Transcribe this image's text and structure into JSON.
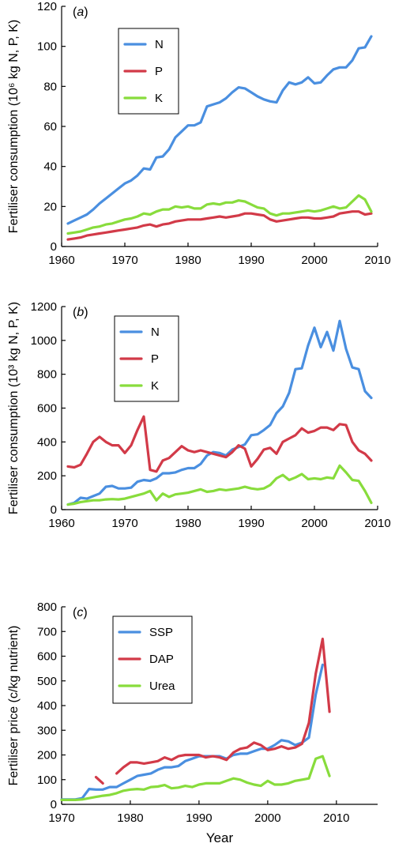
{
  "chart_data": [
    {
      "type": "line",
      "panel": "(a)",
      "panel_letter": "a",
      "ylabel": "Fertiliser consumption (10⁶ kg N, P, K)",
      "xlabel": "",
      "xlim": [
        1960,
        2010
      ],
      "ylim": [
        0,
        120
      ],
      "xticks": [
        1960,
        1970,
        1980,
        1990,
        2000,
        2010
      ],
      "yticks": [
        0,
        20,
        40,
        60,
        80,
        100,
        120
      ],
      "legend_position": "top-left",
      "x": [
        1961,
        1962,
        1963,
        1964,
        1965,
        1966,
        1967,
        1968,
        1969,
        1970,
        1971,
        1972,
        1973,
        1974,
        1975,
        1976,
        1977,
        1978,
        1979,
        1980,
        1981,
        1982,
        1983,
        1984,
        1985,
        1986,
        1987,
        1988,
        1989,
        1990,
        1991,
        1992,
        1993,
        1994,
        1995,
        1996,
        1997,
        1998,
        1999,
        2000,
        2001,
        2002,
        2003,
        2004,
        2005,
        2006,
        2007,
        2008,
        2009
      ],
      "series": [
        {
          "name": "N",
          "color": "#4a8fe0",
          "values": [
            11.5,
            13,
            14.5,
            16,
            18.5,
            21.5,
            24,
            26.5,
            29,
            31.5,
            33,
            35.5,
            39,
            38.5,
            44.5,
            45,
            48.5,
            54.5,
            57.5,
            60.5,
            60.5,
            62,
            70,
            71,
            72,
            74,
            77,
            79.5,
            79,
            77,
            75,
            73.5,
            72.5,
            72,
            78,
            82,
            81,
            82,
            84.5,
            81.5,
            82,
            85.5,
            88.5,
            89.5,
            89.5,
            93,
            99,
            99.5,
            105
          ]
        },
        {
          "name": "P",
          "color": "#d23a48",
          "values": [
            3.5,
            4,
            4.5,
            5.5,
            6,
            6.5,
            7,
            7.5,
            8,
            8.5,
            9,
            9.5,
            10.5,
            11,
            10,
            11,
            11.5,
            12.5,
            13,
            13.5,
            13.5,
            13.5,
            14,
            14.5,
            15,
            14.5,
            15,
            15.5,
            16.5,
            16.5,
            16,
            15.5,
            13.5,
            12.5,
            13,
            13.5,
            14,
            14.5,
            14.5,
            14,
            14,
            14.5,
            15,
            16.5,
            17,
            17.5,
            17.5,
            16,
            16.5
          ]
        },
        {
          "name": "K",
          "color": "#88dc3c",
          "values": [
            6.5,
            7,
            7.5,
            8.5,
            9.5,
            10,
            11,
            11.5,
            12.5,
            13.5,
            14,
            15,
            16.5,
            16,
            17.5,
            18.5,
            18.5,
            20,
            19.5,
            20,
            19,
            19,
            21,
            21.5,
            21,
            22,
            22,
            23,
            22.5,
            21,
            19.5,
            19,
            16.5,
            15.5,
            16.5,
            16.5,
            17,
            17.5,
            18,
            17.5,
            18,
            19,
            20,
            19,
            19.5,
            22.5,
            25.5,
            23.5,
            17.5
          ]
        }
      ]
    },
    {
      "type": "line",
      "panel": "(b)",
      "panel_letter": "b",
      "ylabel": "Fertiliser consumption (10³ kg N, P, K)",
      "xlabel": "",
      "xlim": [
        1960,
        2010
      ],
      "ylim": [
        0,
        1200
      ],
      "xticks": [
        1960,
        1970,
        1980,
        1990,
        2000,
        2010
      ],
      "yticks": [
        0,
        200,
        400,
        600,
        800,
        1000,
        1200
      ],
      "legend_position": "top-left",
      "x": [
        1961,
        1962,
        1963,
        1964,
        1965,
        1966,
        1967,
        1968,
        1969,
        1970,
        1971,
        1972,
        1973,
        1974,
        1975,
        1976,
        1977,
        1978,
        1979,
        1980,
        1981,
        1982,
        1983,
        1984,
        1985,
        1986,
        1987,
        1988,
        1989,
        1990,
        1991,
        1992,
        1993,
        1994,
        1995,
        1996,
        1997,
        1998,
        1999,
        2000,
        2001,
        2002,
        2003,
        2004,
        2005,
        2006,
        2007,
        2008,
        2009
      ],
      "series": [
        {
          "name": "N",
          "color": "#4a8fe0",
          "values": [
            30,
            40,
            70,
            65,
            80,
            95,
            135,
            140,
            125,
            125,
            130,
            165,
            175,
            170,
            185,
            215,
            215,
            220,
            235,
            245,
            245,
            270,
            320,
            340,
            335,
            320,
            355,
            370,
            385,
            440,
            445,
            470,
            500,
            570,
            610,
            690,
            830,
            835,
            970,
            1075,
            960,
            1050,
            940,
            1115,
            950,
            840,
            830,
            700,
            660
          ]
        },
        {
          "name": "P",
          "color": "#d23a48",
          "values": [
            255,
            250,
            265,
            330,
            400,
            430,
            400,
            380,
            380,
            335,
            380,
            470,
            550,
            235,
            225,
            290,
            305,
            340,
            375,
            350,
            340,
            350,
            340,
            330,
            320,
            310,
            340,
            380,
            360,
            255,
            300,
            355,
            365,
            330,
            400,
            420,
            440,
            480,
            455,
            465,
            485,
            485,
            470,
            505,
            500,
            400,
            350,
            330,
            290
          ]
        },
        {
          "name": "K",
          "color": "#88dc3c",
          "values": [
            30,
            35,
            45,
            50,
            55,
            55,
            60,
            62,
            60,
            65,
            75,
            85,
            95,
            110,
            55,
            95,
            75,
            90,
            95,
            100,
            110,
            120,
            105,
            110,
            120,
            115,
            120,
            125,
            135,
            125,
            120,
            125,
            145,
            185,
            205,
            175,
            190,
            210,
            180,
            185,
            180,
            190,
            185,
            260,
            220,
            175,
            170,
            110,
            40
          ]
        }
      ]
    },
    {
      "type": "line",
      "panel": "(c)",
      "panel_letter": "c",
      "ylabel": "Fertiliser price (c/kg nutrient)",
      "xlabel": "Year",
      "xlim": [
        1970,
        2016
      ],
      "ylim": [
        0,
        800
      ],
      "xticks": [
        1970,
        1980,
        1990,
        2000,
        2010
      ],
      "yticks": [
        0,
        100,
        200,
        300,
        400,
        500,
        600,
        700,
        800
      ],
      "legend_position": "top-left",
      "series": [
        {
          "name": "SSP",
          "color": "#4a8fe0",
          "x": [
            1970,
            1971,
            1972,
            1973,
            1974,
            1975,
            1976,
            1977,
            1978,
            1979,
            1980,
            1981,
            1982,
            1983,
            1984,
            1985,
            1986,
            1987,
            1988,
            1989,
            1990,
            1991,
            1992,
            1993,
            1994,
            1995,
            1996,
            1997,
            1998,
            1999,
            2000,
            2001,
            2002,
            2003,
            2004,
            2005,
            2006,
            2007,
            2008,
            2009
          ],
          "values": [
            20,
            20,
            20,
            25,
            62,
            60,
            60,
            70,
            70,
            85,
            100,
            115,
            120,
            125,
            140,
            150,
            150,
            155,
            175,
            185,
            195,
            195,
            195,
            195,
            185,
            200,
            205,
            205,
            215,
            225,
            225,
            240,
            260,
            255,
            240,
            250,
            270,
            445,
            565,
            null
          ]
        },
        {
          "name": "DAP",
          "color": "#d23a48",
          "x": [
            1975,
            1976,
            null,
            1978,
            1979,
            1980,
            1981,
            1982,
            1983,
            1984,
            1985,
            1986,
            1987,
            1988,
            1989,
            1990,
            1991,
            1992,
            1993,
            1994,
            1995,
            1996,
            1997,
            1998,
            1999,
            2000,
            2001,
            2002,
            2003,
            2004,
            2005,
            2006,
            2007,
            2008,
            2009
          ],
          "values": [
            110,
            85,
            null,
            125,
            150,
            170,
            170,
            165,
            170,
            175,
            190,
            180,
            195,
            200,
            200,
            200,
            190,
            195,
            190,
            180,
            210,
            225,
            230,
            250,
            240,
            220,
            225,
            235,
            225,
            230,
            245,
            330,
            530,
            670,
            375
          ]
        },
        {
          "name": "Urea",
          "color": "#88dc3c",
          "x": [
            1970,
            1971,
            1972,
            1973,
            1974,
            1975,
            1976,
            1977,
            1978,
            1979,
            1980,
            1981,
            1982,
            1983,
            1984,
            1985,
            1986,
            1987,
            1988,
            1989,
            1990,
            1991,
            1992,
            1993,
            1994,
            1995,
            1996,
            1997,
            1998,
            1999,
            2000,
            2001,
            2002,
            2003,
            2004,
            2005,
            2006,
            2007,
            2008,
            2009
          ],
          "values": [
            18,
            18,
            18,
            20,
            25,
            30,
            35,
            38,
            45,
            55,
            60,
            62,
            60,
            70,
            72,
            78,
            65,
            68,
            75,
            70,
            80,
            85,
            85,
            85,
            95,
            105,
            100,
            88,
            80,
            75,
            95,
            80,
            80,
            85,
            95,
            100,
            105,
            185,
            195,
            115
          ]
        }
      ]
    }
  ]
}
